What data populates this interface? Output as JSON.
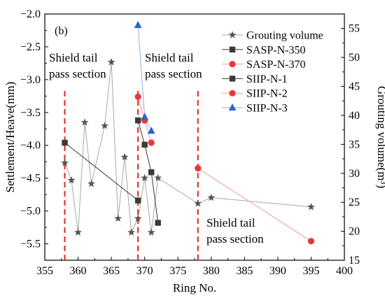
{
  "chart_data": {
    "type": "line",
    "panel_label": "(b)",
    "xlabel": "Ring No.",
    "ylabel_left": "Settlement/Heave(mm)",
    "ylabel_right": "Grouting volume(m³)",
    "xlim": [
      355,
      400
    ],
    "ylim_left": [
      -5.75,
      -2.0
    ],
    "ylim_right": [
      15,
      57.5
    ],
    "x_ticks": [
      355,
      360,
      365,
      370,
      375,
      380,
      385,
      390,
      395,
      400
    ],
    "y_left_ticks": [
      -2.0,
      -2.5,
      -3.0,
      -3.5,
      -4.0,
      -4.5,
      -5.0,
      -5.5
    ],
    "y_left_tick_labels": [
      "−2.0",
      "−2.5",
      "−3.0",
      "−3.5",
      "−4.0",
      "−4.5",
      "−5.0",
      "−5.5"
    ],
    "y_right_ticks": [
      15,
      20,
      25,
      30,
      35,
      40,
      45,
      50,
      55
    ],
    "grid": false,
    "legend_position": "top-right",
    "series": [
      {
        "name": "Grouting volume",
        "axis": "right",
        "marker": "star",
        "color": "#555555",
        "line_color": "#a8a8a8",
        "x": [
          358,
          359,
          360,
          361,
          362,
          364,
          365,
          366,
          367,
          368,
          369,
          370,
          371,
          372,
          378,
          380,
          395
        ],
        "y": [
          31.8,
          28.8,
          19.8,
          38.8,
          28.2,
          38.2,
          49.2,
          22.2,
          32.8,
          19.8,
          22.2,
          29.2,
          19.8,
          29.2,
          24.8,
          25.8,
          24.2
        ]
      },
      {
        "name": "SASP-N-350",
        "axis": "left",
        "marker": "square",
        "color": "#3a3a3a",
        "line_color": "#3a3a3a",
        "x": [
          358,
          369
        ],
        "y": [
          -3.96,
          -4.84
        ]
      },
      {
        "name": "SASP-N-370",
        "axis": "left",
        "marker": "circle",
        "color": "#e8373a",
        "line_color": "#f19a9a",
        "x": [
          378,
          395
        ],
        "y": [
          -4.35,
          -5.46
        ]
      },
      {
        "name": "SIIP-N-1",
        "axis": "left",
        "marker": "square",
        "color": "#3a3a3a",
        "line_color": "#3a3a3a",
        "x": [
          369,
          370,
          371,
          372
        ],
        "y": [
          -3.62,
          -3.99,
          -4.41,
          -5.18
        ]
      },
      {
        "name": "SIIP-N-2",
        "axis": "left",
        "marker": "circle",
        "color": "#e8373a",
        "line_color": "#f19a9a",
        "x": [
          369,
          370,
          371
        ],
        "y": [
          -3.26,
          -3.62,
          -3.96
        ]
      },
      {
        "name": "SIIP-N-3",
        "axis": "left",
        "marker": "triangle",
        "color": "#2a63d4",
        "line_color": "#8fb0ea",
        "x": [
          369,
          370,
          371
        ],
        "y": [
          -2.17,
          -3.57,
          -3.78
        ]
      }
    ],
    "pass_lines": {
      "color": "#e8231d",
      "x": [
        358,
        369,
        378
      ]
    },
    "annotations": [
      {
        "lines": [
          "Shield tail",
          "pass section"
        ]
      },
      {
        "lines": [
          "Shield tail",
          "pass section"
        ]
      },
      {
        "lines": [
          "Shield tail",
          "pass section"
        ]
      }
    ]
  }
}
